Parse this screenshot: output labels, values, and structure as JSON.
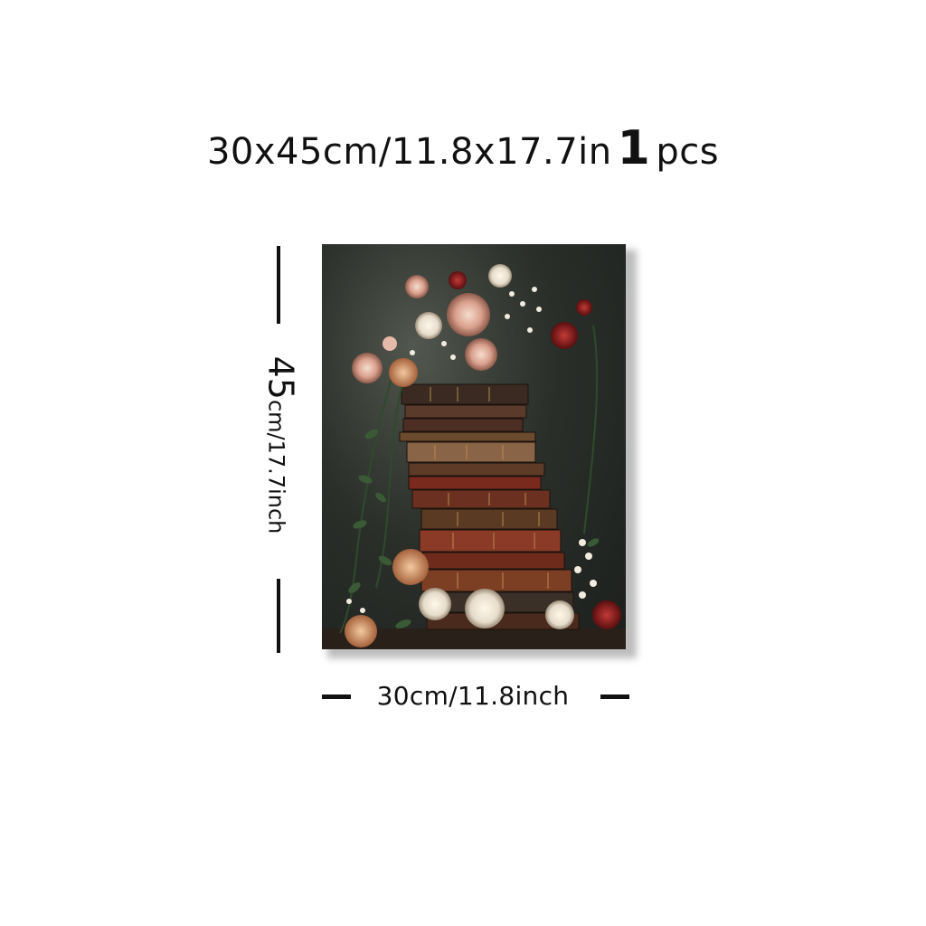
{
  "title": {
    "size_text": "30x45cm/11.8x17.7in",
    "quantity": "1",
    "unit": "pcs"
  },
  "dimensions": {
    "height_number": "45",
    "height_rest": "cm/17.7inch",
    "width_label": "30cm/11.8inch"
  },
  "artwork": {
    "subject": "stack-of-old-books-with-flowers",
    "colors": {
      "background": "#23271f",
      "book_red": "#7a2a1c",
      "book_brown": "#5a3a22",
      "gold": "#b8904f",
      "rose_pink": "#e7b9a8",
      "rose_red": "#8c1f1f",
      "leaf": "#2f4a2c"
    }
  }
}
